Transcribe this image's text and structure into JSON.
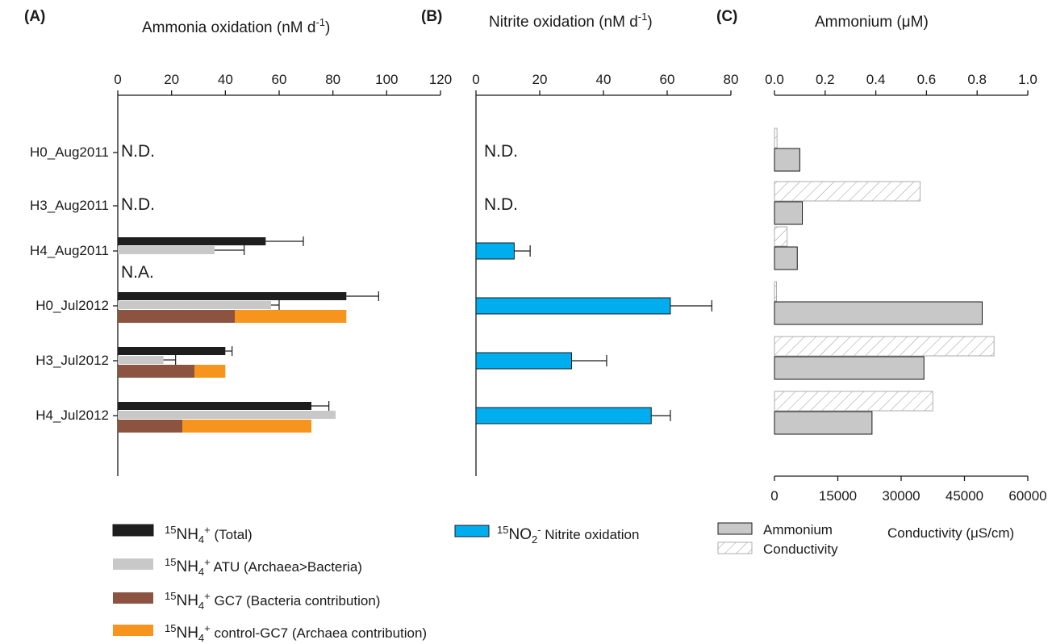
{
  "panels": {
    "A": {
      "letter": "(A)",
      "title": "Ammonia oxidation (nM d",
      "title_sup": "-1",
      "title_end": ")"
    },
    "B": {
      "letter": "(B)",
      "title": "Nitrite oxidation (nM d",
      "title_sup": "-1",
      "title_end": ")"
    },
    "C": {
      "letter": "(C)",
      "title": "Ammonium (μM)"
    }
  },
  "colors": {
    "total": "#1e1e1e",
    "atu": "#c8c8c8",
    "gc7": "#8c5340",
    "control_gc7": "#f7941d",
    "nitrite": "#00aeef",
    "ammonium": "#c8c8c8",
    "hatch": "#9a9a9a"
  },
  "notes": {
    "nd": "N.D.",
    "na": "N.A."
  },
  "legend": {
    "sup15": "15",
    "nh4": "NH",
    "nh4_sub": "4",
    "nh4_sup": "+",
    "total": " (Total)",
    "atu": " ATU (Archaea>Bacteria)",
    "gc7": " GC7 (Bacteria contribution)",
    "control_gc7": " control-GC7 (Archaea contribution)",
    "no2": "NO",
    "no2_sub": "2",
    "no2_sup": "-",
    "nitrite": " Nitrite oxidation",
    "ammonium": "Ammonium",
    "conductivity": "Conductivity",
    "conductivity_axis": "Conductivity (μS/cm)"
  },
  "chart_data": [
    {
      "type": "bar",
      "panel": "A",
      "title": "Ammonia oxidation (nM d-1)",
      "categories": [
        "H0_Aug2011",
        "H3_Aug2011",
        "H4_Aug2011",
        "H0_Jul2012",
        "H3_Jul2012",
        "H4_Jul2012"
      ],
      "xlim": [
        0,
        120
      ],
      "xticks": [
        0,
        20,
        40,
        60,
        80,
        100,
        120
      ],
      "orientation": "horizontal",
      "series": [
        {
          "name": "15NH4+ (Total)",
          "values": [
            null,
            null,
            55,
            85,
            40,
            72
          ],
          "errors": [
            null,
            null,
            14,
            12,
            2.5,
            6.5
          ]
        },
        {
          "name": "15NH4+ ATU (Archaea>Bacteria)",
          "values": [
            null,
            null,
            36,
            57,
            17,
            81
          ],
          "errors": [
            null,
            null,
            11,
            3,
            4.5,
            null
          ]
        },
        {
          "name": "15NH4+ GC7 (Bacteria contribution)",
          "values": [
            null,
            null,
            null,
            43.5,
            28.5,
            24
          ]
        },
        {
          "name": "15NH4+ control-GC7 (Archaea contribution)",
          "values": [
            null,
            null,
            null,
            41.5,
            11.5,
            48
          ]
        }
      ],
      "annotations": [
        {
          "category": "H0_Aug2011",
          "text": "N.D."
        },
        {
          "category": "H3_Aug2011",
          "text": "N.D."
        },
        {
          "category": "H4_Aug2011",
          "text": "N.A."
        }
      ]
    },
    {
      "type": "bar",
      "panel": "B",
      "title": "Nitrite oxidation (nM d-1)",
      "categories": [
        "H0_Aug2011",
        "H3_Aug2011",
        "H4_Aug2011",
        "H0_Jul2012",
        "H3_Jul2012",
        "H4_Jul2012"
      ],
      "xlim": [
        0,
        80
      ],
      "xticks": [
        0,
        20,
        40,
        60,
        80
      ],
      "orientation": "horizontal",
      "series": [
        {
          "name": "15NO2- Nitrite oxidation",
          "values": [
            null,
            null,
            12,
            61,
            30,
            55
          ],
          "errors": [
            null,
            null,
            5,
            13,
            11,
            6
          ]
        }
      ],
      "annotations": [
        {
          "category": "H0_Aug2011",
          "text": "N.D."
        },
        {
          "category": "H3_Aug2011",
          "text": "N.D."
        }
      ]
    },
    {
      "type": "bar",
      "panel": "C",
      "title": "Ammonium (μM)",
      "categories": [
        "H0_Aug2011",
        "H3_Aug2011",
        "H4_Aug2011",
        "H0_Jul2012",
        "H3_Jul2012",
        "H4_Jul2012"
      ],
      "orientation": "horizontal",
      "top_axis": {
        "label": "Ammonium (μM)",
        "xlim": [
          0,
          1.0
        ],
        "xticks": [
          "0.0",
          "0.2",
          "0.4",
          "0.6",
          "0.8",
          "1.0"
        ]
      },
      "bottom_axis": {
        "label": "Conductivity (μS/cm)",
        "xlim": [
          0,
          60000
        ],
        "xticks": [
          "0",
          "15000",
          "30000",
          "45000",
          "60000"
        ]
      },
      "series": [
        {
          "name": "Ammonium",
          "axis": "top",
          "values": [
            0.1,
            0.11,
            0.09,
            0.82,
            0.59,
            0.385
          ]
        },
        {
          "name": "Conductivity",
          "axis": "bottom",
          "values": [
            600,
            34500,
            3000,
            500,
            52000,
            37500
          ]
        }
      ]
    }
  ]
}
